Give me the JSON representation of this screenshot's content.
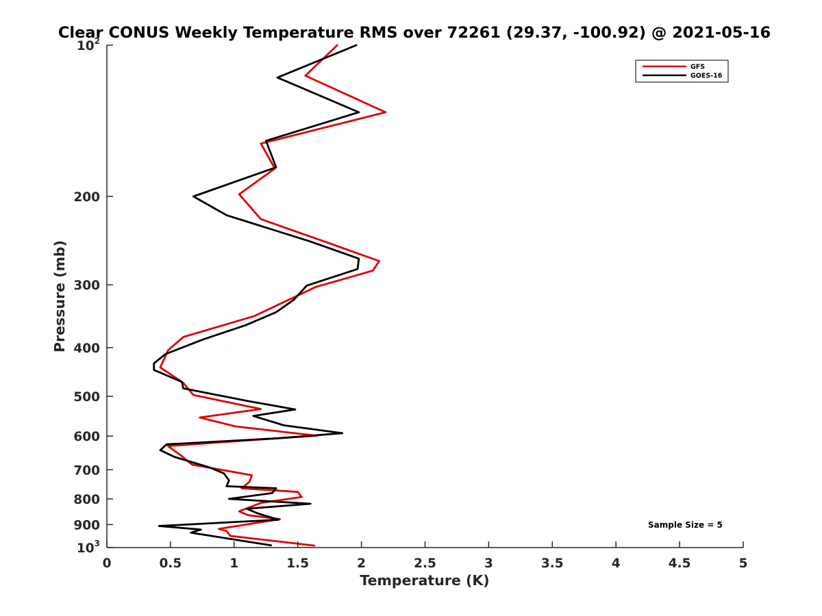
{
  "chart_data": {
    "type": "line",
    "title": "Clear CONUS Weekly Temperature RMS over 72261 (29.37, -100.92) @ 2021-05-16",
    "xlabel": "Temperature (K)",
    "ylabel": "Pressure (mb)",
    "xlim": [
      0,
      5
    ],
    "ylim": [
      100,
      1000
    ],
    "yscale": "log",
    "y_reversed": true,
    "x_ticks": [
      0,
      0.5,
      1,
      1.5,
      2,
      2.5,
      3,
      3.5,
      4,
      4.5,
      5
    ],
    "x_tick_labels": [
      "0",
      "0.5",
      "1",
      "1.5",
      "2",
      "2.5",
      "3",
      "3.5",
      "4",
      "4.5",
      "5"
    ],
    "y_ticks": [
      100,
      200,
      300,
      400,
      500,
      600,
      700,
      800,
      900,
      1000
    ],
    "y_tick_labels": [
      {
        "base": "10",
        "sup": "2"
      },
      {
        "base": "200",
        "sup": ""
      },
      {
        "base": "300",
        "sup": ""
      },
      {
        "base": "400",
        "sup": ""
      },
      {
        "base": "500",
        "sup": ""
      },
      {
        "base": "600",
        "sup": ""
      },
      {
        "base": "700",
        "sup": ""
      },
      {
        "base": "800",
        "sup": ""
      },
      {
        "base": "900",
        "sup": ""
      },
      {
        "base": "10",
        "sup": "3"
      }
    ],
    "grid": false,
    "legend_position": "top-right",
    "annotation": "Sample Size = 5",
    "series": [
      {
        "name": "GFS",
        "color": "#e00000",
        "points": [
          [
            1.81,
            100
          ],
          [
            1.56,
            115
          ],
          [
            2.19,
            136
          ],
          [
            1.21,
            157
          ],
          [
            1.32,
            176
          ],
          [
            1.04,
            198
          ],
          [
            1.21,
            222
          ],
          [
            1.75,
            248
          ],
          [
            2.14,
            269
          ],
          [
            2.09,
            281
          ],
          [
            1.64,
            303
          ],
          [
            1.16,
            346
          ],
          [
            0.6,
            381
          ],
          [
            0.48,
            405
          ],
          [
            0.42,
            438
          ],
          [
            0.6,
            470
          ],
          [
            0.68,
            497
          ],
          [
            1.21,
            530
          ],
          [
            0.73,
            551
          ],
          [
            1.01,
            574
          ],
          [
            1.65,
            599
          ],
          [
            1.38,
            605
          ],
          [
            0.48,
            628
          ],
          [
            0.58,
            655
          ],
          [
            0.67,
            684
          ],
          [
            1.14,
            718
          ],
          [
            1.12,
            740
          ],
          [
            1.06,
            762
          ],
          [
            1.5,
            775
          ],
          [
            1.53,
            793
          ],
          [
            1.21,
            815
          ],
          [
            1.04,
            847
          ],
          [
            1.11,
            862
          ],
          [
            1.36,
            878
          ],
          [
            0.88,
            918
          ],
          [
            0.94,
            927
          ],
          [
            0.97,
            948
          ],
          [
            1.63,
            991
          ]
        ]
      },
      {
        "name": "GOES-16",
        "color": "#000000",
        "points": [
          [
            1.96,
            100
          ],
          [
            1.34,
            116
          ],
          [
            1.98,
            136
          ],
          [
            1.25,
            155
          ],
          [
            1.33,
            175
          ],
          [
            0.68,
            200
          ],
          [
            0.94,
            218
          ],
          [
            1.6,
            246
          ],
          [
            1.98,
            266
          ],
          [
            1.97,
            279
          ],
          [
            1.57,
            301
          ],
          [
            1.47,
            321
          ],
          [
            1.33,
            340
          ],
          [
            1.09,
            361
          ],
          [
            0.76,
            385
          ],
          [
            0.46,
            412
          ],
          [
            0.37,
            430
          ],
          [
            0.37,
            443
          ],
          [
            0.59,
            468
          ],
          [
            0.6,
            482
          ],
          [
            1.11,
            511
          ],
          [
            1.48,
            531
          ],
          [
            1.15,
            547
          ],
          [
            1.39,
            571
          ],
          [
            1.85,
            592
          ],
          [
            1.35,
            606
          ],
          [
            0.47,
            623
          ],
          [
            0.42,
            640
          ],
          [
            0.53,
            660
          ],
          [
            0.81,
            693
          ],
          [
            0.92,
            712
          ],
          [
            0.96,
            735
          ],
          [
            0.94,
            755
          ],
          [
            1.33,
            762
          ],
          [
            1.3,
            779
          ],
          [
            0.96,
            800
          ],
          [
            1.6,
            818
          ],
          [
            1.1,
            837
          ],
          [
            1.19,
            856
          ],
          [
            1.35,
            880
          ],
          [
            0.41,
            906
          ],
          [
            0.74,
            921
          ],
          [
            0.66,
            934
          ],
          [
            1.29,
            990
          ]
        ]
      }
    ]
  }
}
